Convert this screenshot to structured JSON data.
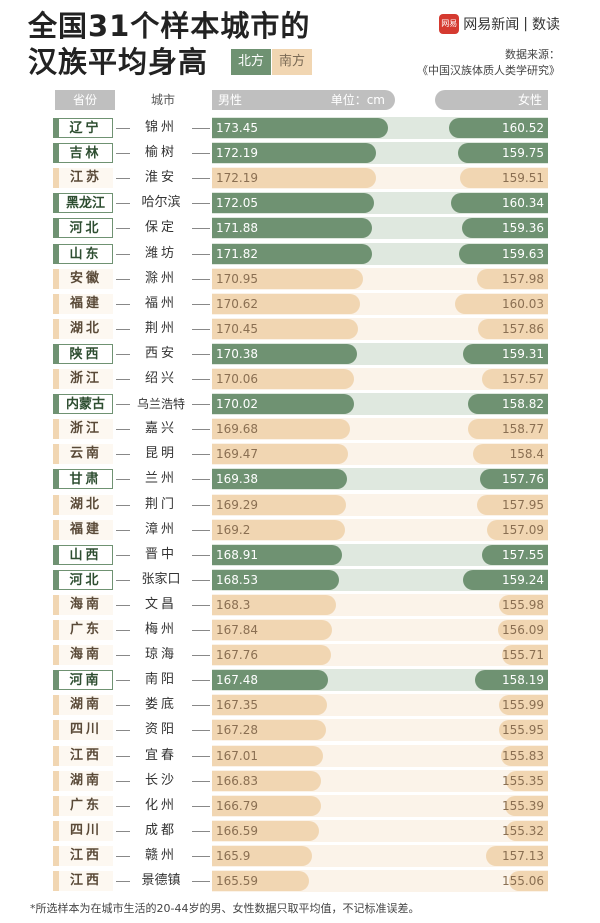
{
  "title_line1": "全国31个样本城市的",
  "title_line2": "汉族平均身高",
  "legend": {
    "north": "北方",
    "south": "南方"
  },
  "brand": {
    "logo": "网易",
    "name": "网易新闻",
    "section": "数读"
  },
  "source_label": "数据来源：",
  "source_text": "《中国汉族体质人类学研究》",
  "header": {
    "province": "省份",
    "city": "城市",
    "male": "男性",
    "unit": "单位：cm",
    "female": "女性"
  },
  "colors": {
    "north": "#6f9272",
    "south": "#f1d6b2"
  },
  "footnote": "*所选样本为在城市生活的20-44岁的男、女性数据只取平均值，不记标准误差。",
  "chart_data": {
    "type": "bar",
    "title": "全国31个样本城市的汉族平均身高",
    "unit": "cm",
    "series": [
      {
        "name": "男性"
      },
      {
        "name": "女性"
      }
    ],
    "rows": [
      {
        "province": "辽宁",
        "city": "锦州",
        "region": "north",
        "male": 173.45,
        "female": 160.52
      },
      {
        "province": "吉林",
        "city": "榆树",
        "region": "north",
        "male": 172.19,
        "female": 159.75
      },
      {
        "province": "江苏",
        "city": "淮安",
        "region": "south",
        "male": 172.19,
        "female": 159.51
      },
      {
        "province": "黑龙江",
        "city": "哈尔滨",
        "region": "north",
        "male": 172.05,
        "female": 160.34
      },
      {
        "province": "河北",
        "city": "保定",
        "region": "north",
        "male": 171.88,
        "female": 159.36
      },
      {
        "province": "山东",
        "city": "潍坊",
        "region": "north",
        "male": 171.82,
        "female": 159.63
      },
      {
        "province": "安徽",
        "city": "滁州",
        "region": "south",
        "male": 170.95,
        "female": 157.98
      },
      {
        "province": "福建",
        "city": "福州",
        "region": "south",
        "male": 170.62,
        "female": 160.03
      },
      {
        "province": "湖北",
        "city": "荆州",
        "region": "south",
        "male": 170.45,
        "female": 157.86
      },
      {
        "province": "陕西",
        "city": "西安",
        "region": "north",
        "male": 170.38,
        "female": 159.31
      },
      {
        "province": "浙江",
        "city": "绍兴",
        "region": "south",
        "male": 170.06,
        "female": 157.57
      },
      {
        "province": "内蒙古",
        "city": "乌兰浩特",
        "region": "north",
        "male": 170.02,
        "female": 158.82
      },
      {
        "province": "浙江",
        "city": "嘉兴",
        "region": "south",
        "male": 169.68,
        "female": 158.77
      },
      {
        "province": "云南",
        "city": "昆明",
        "region": "south",
        "male": 169.47,
        "female": 158.4
      },
      {
        "province": "甘肃",
        "city": "兰州",
        "region": "north",
        "male": 169.38,
        "female": 157.76
      },
      {
        "province": "湖北",
        "city": "荆门",
        "region": "south",
        "male": 169.29,
        "female": 157.95
      },
      {
        "province": "福建",
        "city": "漳州",
        "region": "south",
        "male": 169.2,
        "female": 157.09
      },
      {
        "province": "山西",
        "city": "晋中",
        "region": "north",
        "male": 168.91,
        "female": 157.55
      },
      {
        "province": "河北",
        "city": "张家口",
        "region": "north",
        "male": 168.53,
        "female": 159.24
      },
      {
        "province": "海南",
        "city": "文昌",
        "region": "south",
        "male": 168.3,
        "female": 155.98
      },
      {
        "province": "广东",
        "city": "梅州",
        "region": "south",
        "male": 167.84,
        "female": 156.09
      },
      {
        "province": "海南",
        "city": "琼海",
        "region": "south",
        "male": 167.76,
        "female": 155.71
      },
      {
        "province": "河南",
        "city": "南阳",
        "region": "north",
        "male": 167.48,
        "female": 158.19
      },
      {
        "province": "湖南",
        "city": "娄底",
        "region": "south",
        "male": 167.35,
        "female": 155.99
      },
      {
        "province": "四川",
        "city": "资阳",
        "region": "south",
        "male": 167.28,
        "female": 155.95
      },
      {
        "province": "江西",
        "city": "宜春",
        "region": "south",
        "male": 167.01,
        "female": 155.83
      },
      {
        "province": "湖南",
        "city": "长沙",
        "region": "south",
        "male": 166.83,
        "female": 155.35
      },
      {
        "province": "广东",
        "city": "化州",
        "region": "south",
        "male": 166.79,
        "female": 155.39
      },
      {
        "province": "四川",
        "city": "成都",
        "region": "south",
        "male": 166.59,
        "female": 155.32
      },
      {
        "province": "江西",
        "city": "赣州",
        "region": "south",
        "male": 165.9,
        "female": 157.13
      },
      {
        "province": "江西",
        "city": "景德镇",
        "region": "south",
        "male": 165.59,
        "female": 155.06
      }
    ]
  }
}
